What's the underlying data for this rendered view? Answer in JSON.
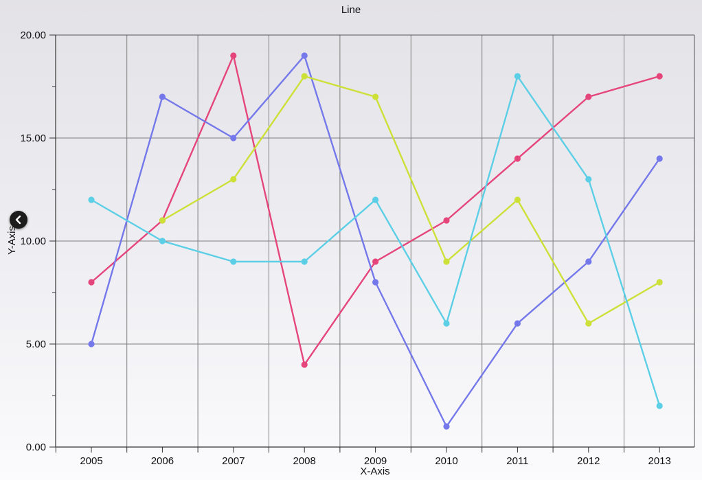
{
  "chart_data": {
    "type": "line",
    "title": "Line",
    "xlabel": "X-Axis",
    "ylabel": "Y-Axis",
    "categories": [
      "2005",
      "2006",
      "2007",
      "2008",
      "2009",
      "2010",
      "2011",
      "2012",
      "2013"
    ],
    "ylim": [
      0,
      20
    ],
    "yticks": [
      "0.00",
      "5.00",
      "10.00",
      "15.00",
      "20.00"
    ],
    "grid": true,
    "series": [
      {
        "color": "#e5457a",
        "values": [
          8,
          11,
          19,
          4,
          9,
          11,
          14,
          17,
          18
        ]
      },
      {
        "color": "#7478ea",
        "values": [
          5,
          17,
          15,
          19,
          8,
          1,
          6,
          9,
          14
        ]
      },
      {
        "color": "#cde038",
        "values": [
          null,
          11,
          13,
          18,
          17,
          9,
          12,
          6,
          8
        ]
      },
      {
        "color": "#5ccfe6",
        "values": [
          12,
          10,
          9,
          9,
          12,
          6,
          18,
          13,
          2
        ]
      }
    ]
  },
  "icons": {
    "back": "chevron-left-icon"
  }
}
